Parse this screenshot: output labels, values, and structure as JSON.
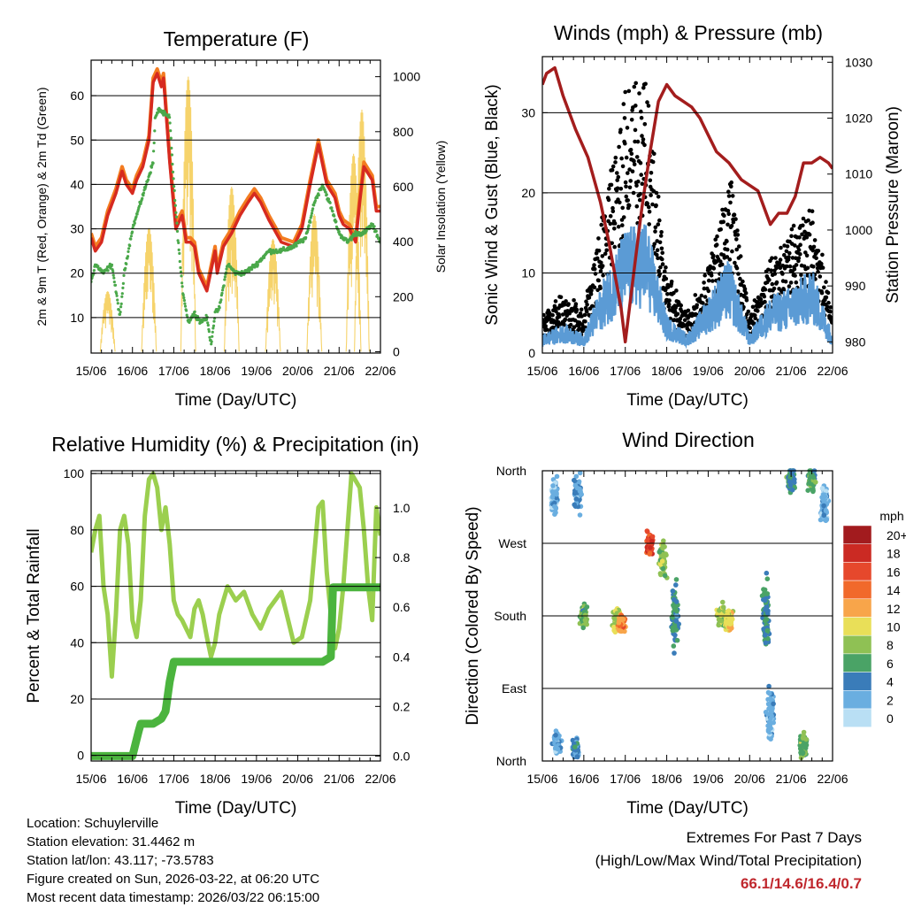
{
  "colors": {
    "temp2m": "#d62a20",
    "temp9m": "#f37c20",
    "dewpoint": "#4aa84a",
    "insolation": "#f6d36b",
    "gust": "#000000",
    "wind": "#5b9bd5",
    "pressure": "#a31d1d",
    "rh": "#9bcf4f",
    "precip": "#4bb43e",
    "extremes": "#c0282e"
  },
  "chart_data": [
    {
      "id": "temperature",
      "type": "line",
      "title": "Temperature (F)",
      "xlabel": "Time (Day/UTC)",
      "ylabel": "2m & 9m T (Red, Orange) & 2m Td (Green)",
      "y2label": "Solar Insolation (Yellow)",
      "x_tick_labels": [
        "15/06",
        "16/06",
        "17/06",
        "18/06",
        "19/06",
        "20/06",
        "21/06",
        "22/06"
      ],
      "xlim": [
        0,
        7
      ],
      "ylim": [
        2,
        68
      ],
      "y_ticks": [
        10,
        20,
        30,
        40,
        50,
        60
      ],
      "y2lim": [
        -5,
        1060
      ],
      "y2_ticks": [
        0,
        200,
        400,
        600,
        800,
        1000
      ],
      "grid": "horizontal",
      "series": [
        {
          "name": "2m T",
          "x": [
            0,
            0.1,
            0.25,
            0.4,
            0.6,
            0.75,
            0.85,
            1.0,
            1.1,
            1.25,
            1.4,
            1.5,
            1.6,
            1.7,
            1.75,
            1.9,
            2.0,
            2.05,
            2.2,
            2.3,
            2.4,
            2.5,
            2.6,
            2.8,
            3.0,
            3.05,
            3.2,
            3.4,
            3.6,
            3.8,
            3.95,
            4.1,
            4.3,
            4.6,
            4.9,
            5.1,
            5.3,
            5.5,
            5.7,
            5.9,
            6.0,
            6.1,
            6.25,
            6.4,
            6.5,
            6.6,
            6.8,
            6.9,
            7.0
          ],
          "values": [
            28,
            25,
            27,
            33,
            38,
            43,
            40,
            38,
            41,
            44,
            50,
            63,
            65,
            62,
            64,
            45,
            35,
            30,
            33,
            27,
            27,
            26,
            20,
            16,
            25,
            20,
            26,
            29,
            33,
            36,
            38,
            36,
            32,
            27,
            26,
            30,
            40,
            49,
            40,
            37,
            33,
            31,
            30,
            27,
            36,
            44,
            41,
            34,
            34
          ]
        },
        {
          "name": "9m T",
          "x": [
            0,
            0.1,
            0.25,
            0.4,
            0.6,
            0.75,
            0.85,
            1.0,
            1.1,
            1.25,
            1.4,
            1.5,
            1.6,
            1.7,
            1.75,
            1.9,
            2.0,
            2.05,
            2.2,
            2.3,
            2.4,
            2.5,
            2.6,
            2.8,
            3.0,
            3.05,
            3.2,
            3.4,
            3.6,
            3.8,
            3.95,
            4.1,
            4.3,
            4.6,
            4.9,
            5.1,
            5.3,
            5.5,
            5.7,
            5.9,
            6.0,
            6.1,
            6.25,
            6.4,
            6.5,
            6.6,
            6.8,
            6.9,
            7.0
          ],
          "values": [
            29,
            26,
            28,
            34,
            39,
            44,
            41,
            39,
            42,
            45,
            51,
            64,
            66,
            63,
            65,
            46,
            36,
            31,
            34,
            28,
            28,
            27,
            21,
            17,
            26,
            21,
            27,
            30,
            34,
            37,
            39,
            37,
            33,
            28,
            27,
            31,
            41,
            50,
            41,
            38,
            34,
            32,
            31,
            28,
            37,
            45,
            42,
            35,
            35
          ]
        },
        {
          "name": "2m Td",
          "x": [
            0,
            0.1,
            0.3,
            0.5,
            0.7,
            0.8,
            0.9,
            1.0,
            1.1,
            1.3,
            1.5,
            1.55,
            1.65,
            1.75,
            1.9,
            2.0,
            2.1,
            2.2,
            2.35,
            2.5,
            2.65,
            2.8,
            2.9,
            3.0,
            3.1,
            3.3,
            3.5,
            3.7,
            4.0,
            4.3,
            4.6,
            4.9,
            5.2,
            5.4,
            5.6,
            5.8,
            6.0,
            6.2,
            6.4,
            6.6,
            6.8,
            7.0
          ],
          "values": [
            18,
            22,
            20,
            22,
            10,
            20,
            25,
            30,
            33,
            39,
            45,
            55,
            57,
            56,
            55,
            40,
            28,
            17,
            9,
            11,
            9,
            10,
            4,
            11,
            12,
            22,
            20,
            20,
            22,
            25,
            25,
            26,
            28,
            36,
            40,
            35,
            29,
            27,
            29,
            29,
            31,
            27
          ]
        },
        {
          "name": "Solar Insolation",
          "axis": "y2",
          "peaks": [
            [
              0.4,
              220
            ],
            [
              1.4,
              450
            ],
            [
              2.35,
              1000
            ],
            [
              3.4,
              600
            ],
            [
              4.4,
              410
            ],
            [
              5.4,
              500
            ],
            [
              6.35,
              720
            ],
            [
              6.55,
              880
            ]
          ]
        }
      ]
    },
    {
      "id": "winds",
      "type": "scatter",
      "title": "Winds (mph) & Pressure (mb)",
      "xlabel": "Time (Day/UTC)",
      "ylabel": "Sonic Wind & Gust (Blue, Black)",
      "y2label": "Station Pressure (Maroon)",
      "x_tick_labels": [
        "15/06",
        "16/06",
        "17/06",
        "18/06",
        "19/06",
        "20/06",
        "21/06",
        "22/06"
      ],
      "xlim": [
        0,
        7
      ],
      "ylim": [
        0,
        37
      ],
      "y_ticks": [
        0,
        10,
        20,
        30
      ],
      "y2lim": [
        978,
        1031
      ],
      "y2_ticks": [
        980,
        990,
        1000,
        1010,
        1020,
        1030
      ],
      "grid": "horizontal",
      "series": [
        {
          "name": "Gust",
          "x": [
            0,
            0.5,
            1.0,
            1.5,
            2.0,
            2.5,
            3.0,
            3.5,
            4.0,
            4.5,
            5.0,
            5.5,
            6.0,
            6.5,
            7.0
          ],
          "values": [
            4,
            6,
            4,
            16,
            28,
            31,
            8,
            4,
            9,
            20,
            4,
            10,
            13,
            16,
            4
          ]
        },
        {
          "name": "Wind",
          "x": [
            0,
            0.5,
            1.0,
            1.5,
            2.0,
            2.5,
            3.0,
            3.5,
            4.0,
            4.5,
            5.0,
            5.5,
            6.0,
            6.5,
            7.0
          ],
          "values": [
            2,
            3,
            2,
            8,
            13,
            14,
            4,
            2,
            6,
            10,
            2,
            6,
            7,
            9,
            2
          ]
        },
        {
          "name": "Station Pressure",
          "axis": "y2",
          "x": [
            0,
            0.1,
            0.3,
            0.5,
            0.8,
            1.1,
            1.4,
            1.6,
            1.9,
            2.0,
            2.25,
            2.4,
            2.6,
            2.8,
            3.0,
            3.2,
            3.4,
            3.6,
            3.8,
            4.0,
            4.2,
            4.5,
            4.8,
            5.0,
            5.2,
            5.4,
            5.5,
            5.7,
            5.9,
            6.1,
            6.3,
            6.5,
            6.7,
            6.9,
            7.0
          ],
          "values": [
            1026,
            1028,
            1029,
            1024,
            1018,
            1013,
            1005,
            998,
            986,
            980,
            995,
            1004,
            1014,
            1023,
            1026,
            1024,
            1023,
            1022,
            1020,
            1017,
            1014,
            1012,
            1009,
            1008,
            1007,
            1003,
            1001,
            1003,
            1003,
            1006,
            1012,
            1012,
            1013,
            1012,
            1011
          ]
        }
      ]
    },
    {
      "id": "humidity",
      "type": "line",
      "title": "Relative Humidity (%) & Precipitation (in)",
      "xlabel": "Time (Day/UTC)",
      "ylabel": "Percent & Total Rainfall",
      "x_tick_labels": [
        "15/06",
        "16/06",
        "17/06",
        "18/06",
        "19/06",
        "20/06",
        "21/06",
        "22/06"
      ],
      "xlim": [
        0,
        7
      ],
      "ylim": [
        -2,
        101
      ],
      "y_ticks": [
        0,
        20,
        40,
        60,
        80,
        100
      ],
      "y2lim": [
        -0.02,
        1.15
      ],
      "y2_ticks": [
        0.0,
        0.2,
        0.4,
        0.6,
        0.8,
        1.0
      ],
      "grid": "horizontal",
      "series": [
        {
          "name": "Relative Humidity",
          "x": [
            0,
            0.1,
            0.2,
            0.3,
            0.4,
            0.5,
            0.6,
            0.7,
            0.8,
            0.9,
            1.0,
            1.1,
            1.2,
            1.3,
            1.4,
            1.5,
            1.6,
            1.7,
            1.8,
            1.9,
            2.0,
            2.1,
            2.2,
            2.3,
            2.4,
            2.5,
            2.6,
            2.7,
            2.8,
            2.9,
            3.0,
            3.1,
            3.3,
            3.5,
            3.7,
            3.9,
            4.1,
            4.3,
            4.6,
            4.9,
            5.1,
            5.3,
            5.5,
            5.6,
            5.7,
            5.8,
            5.9,
            6.0,
            6.1,
            6.3,
            6.5,
            6.6,
            6.7,
            6.8,
            6.9,
            7.0
          ],
          "values": [
            72,
            80,
            85,
            60,
            50,
            28,
            50,
            80,
            85,
            75,
            48,
            42,
            55,
            85,
            98,
            100,
            95,
            80,
            88,
            75,
            55,
            50,
            48,
            45,
            42,
            52,
            55,
            50,
            42,
            35,
            40,
            50,
            60,
            55,
            58,
            50,
            45,
            52,
            58,
            40,
            42,
            55,
            88,
            90,
            65,
            50,
            38,
            45,
            60,
            100,
            95,
            80,
            60,
            48,
            88,
            78
          ]
        },
        {
          "name": "Total Precipitation",
          "axis": "y2",
          "x": [
            0,
            0.6,
            1.0,
            1.15,
            1.2,
            1.5,
            1.7,
            1.8,
            1.9,
            2.0,
            2.05,
            2.5,
            3.0,
            3.5,
            4.0,
            4.5,
            5.0,
            5.3,
            5.6,
            5.8,
            5.85,
            6.0,
            6.5,
            7.0
          ],
          "values": [
            0,
            0,
            0,
            0.1,
            0.13,
            0.13,
            0.15,
            0.18,
            0.3,
            0.38,
            0.38,
            0.38,
            0.38,
            0.38,
            0.38,
            0.38,
            0.38,
            0.38,
            0.38,
            0.4,
            0.68,
            0.68,
            0.68,
            0.68
          ]
        }
      ]
    },
    {
      "id": "direction",
      "type": "scatter",
      "title": "Wind Direction",
      "xlabel": "Time (Day/UTC)",
      "ylabel": "Direction (Colored By Speed)",
      "x_tick_labels": [
        "15/06",
        "16/06",
        "17/06",
        "18/06",
        "19/06",
        "20/06",
        "21/06",
        "22/06"
      ],
      "xlim": [
        0,
        7
      ],
      "y_tick_labels": [
        "North",
        "East",
        "South",
        "West",
        "North"
      ],
      "y_tick_values": [
        0,
        90,
        180,
        270,
        360
      ],
      "ylim": [
        0,
        360
      ],
      "grid": "horizontal",
      "clusters": [
        {
          "x": 0.3,
          "y": 330,
          "spread": 30,
          "speed": 2
        },
        {
          "x": 0.35,
          "y": 20,
          "spread": 20,
          "speed": 2
        },
        {
          "x": 0.85,
          "y": 330,
          "spread": 30,
          "speed": 3
        },
        {
          "x": 0.8,
          "y": 15,
          "spread": 15,
          "speed": 4
        },
        {
          "x": 1.0,
          "y": 180,
          "spread": 20,
          "speed": 7
        },
        {
          "x": 1.8,
          "y": 175,
          "spread": 20,
          "speed": 9
        },
        {
          "x": 1.9,
          "y": 170,
          "spread": 15,
          "speed": 13
        },
        {
          "x": 2.6,
          "y": 270,
          "spread": 25,
          "speed": 16
        },
        {
          "x": 2.9,
          "y": 250,
          "spread": 30,
          "speed": 8
        },
        {
          "x": 3.2,
          "y": 180,
          "spread": 60,
          "speed": 5
        },
        {
          "x": 4.3,
          "y": 180,
          "spread": 20,
          "speed": 8
        },
        {
          "x": 4.5,
          "y": 175,
          "spread": 20,
          "speed": 10
        },
        {
          "x": 5.4,
          "y": 180,
          "spread": 60,
          "speed": 5
        },
        {
          "x": 5.5,
          "y": 60,
          "spread": 50,
          "speed": 2
        },
        {
          "x": 6.0,
          "y": 350,
          "spread": 25,
          "speed": 5
        },
        {
          "x": 6.5,
          "y": 350,
          "spread": 20,
          "speed": 6
        },
        {
          "x": 6.3,
          "y": 20,
          "spread": 20,
          "speed": 7
        },
        {
          "x": 6.8,
          "y": 320,
          "spread": 40,
          "speed": 2
        }
      ],
      "legend_title": "mph",
      "legend_labels": [
        "20+",
        "18",
        "16",
        "14",
        "12",
        "10",
        "8",
        "6",
        "4",
        "2",
        "0"
      ],
      "legend_colors": [
        "#a21b1e",
        "#cb2a23",
        "#e6482c",
        "#f1692b",
        "#f8a54a",
        "#e9df58",
        "#8fc154",
        "#4aa366",
        "#3a7cb9",
        "#6aaee0",
        "#b9dff4"
      ]
    }
  ],
  "footer": {
    "location": "Location: Schuylerville",
    "elevation": "Station elevation: 31.4462 m",
    "latlon": "Station lat/lon: 43.117; -73.5783",
    "created": "Figure created on Sun, 2026-03-22, at 06:20 UTC",
    "latest": "Most recent data timestamp: 2026/03/22 06:15:00",
    "extremes_title": "Extremes For Past 7 Days",
    "extremes_subtitle": "(High/Low/Max Wind/Total Precipitation)",
    "extremes_values": "66.1/14.6/16.4/0.7"
  }
}
